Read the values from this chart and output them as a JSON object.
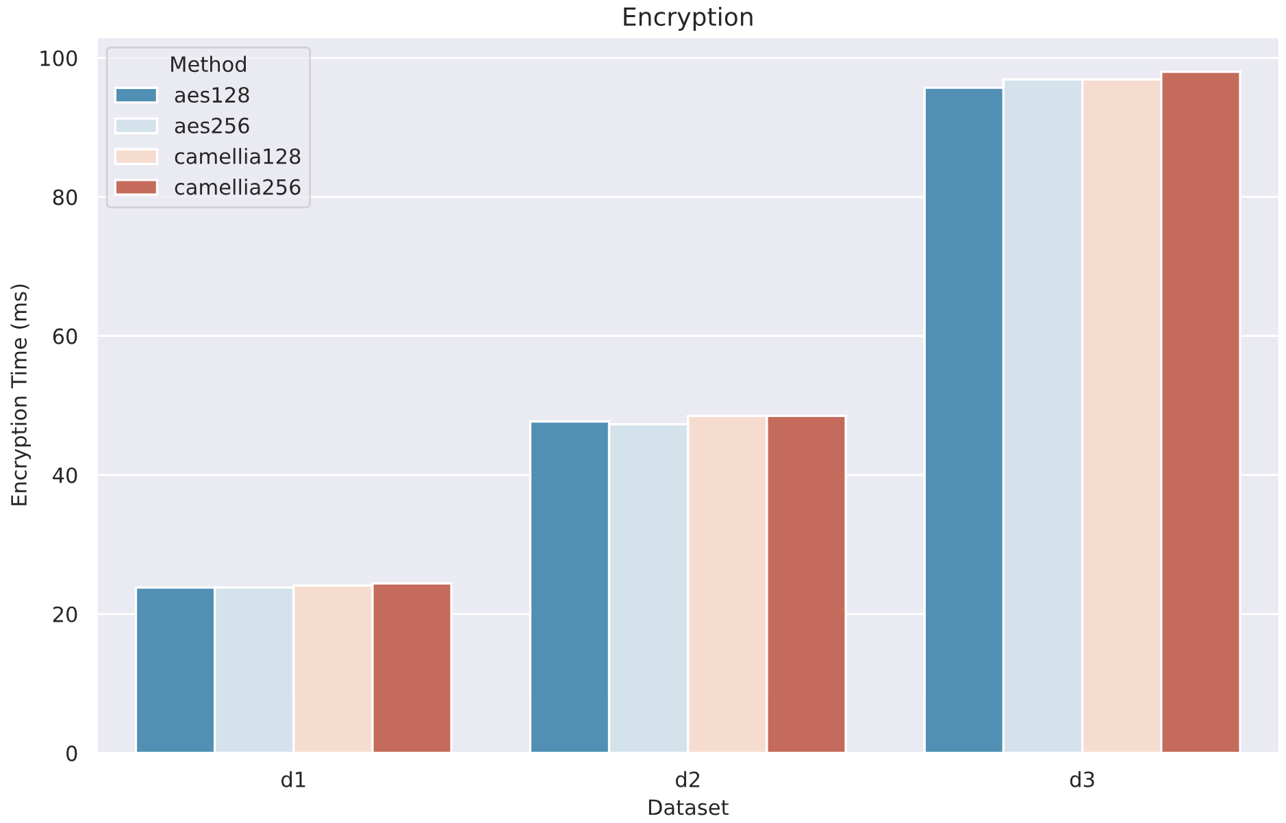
{
  "chart_data": {
    "type": "bar",
    "title": "Encryption",
    "xlabel": "Dataset",
    "ylabel": "Encryption Time (ms)",
    "legend_title": "Method",
    "categories": [
      "d1",
      "d2",
      "d3"
    ],
    "series": [
      {
        "name": "aes128",
        "color": "#5190b4",
        "values": [
          23.8,
          47.7,
          95.7
        ]
      },
      {
        "name": "aes256",
        "color": "#d4e2ec",
        "values": [
          23.8,
          47.3,
          96.9
        ]
      },
      {
        "name": "camellia128",
        "color": "#f6dccf",
        "values": [
          24.1,
          48.5,
          96.9
        ]
      },
      {
        "name": "camellia256",
        "color": "#c56b5c",
        "values": [
          24.4,
          48.5,
          98.0
        ]
      }
    ],
    "ylim": [
      0,
      103
    ],
    "yticks": [
      0,
      20,
      40,
      60,
      80,
      100
    ],
    "grid": "y",
    "legend": "top left"
  }
}
